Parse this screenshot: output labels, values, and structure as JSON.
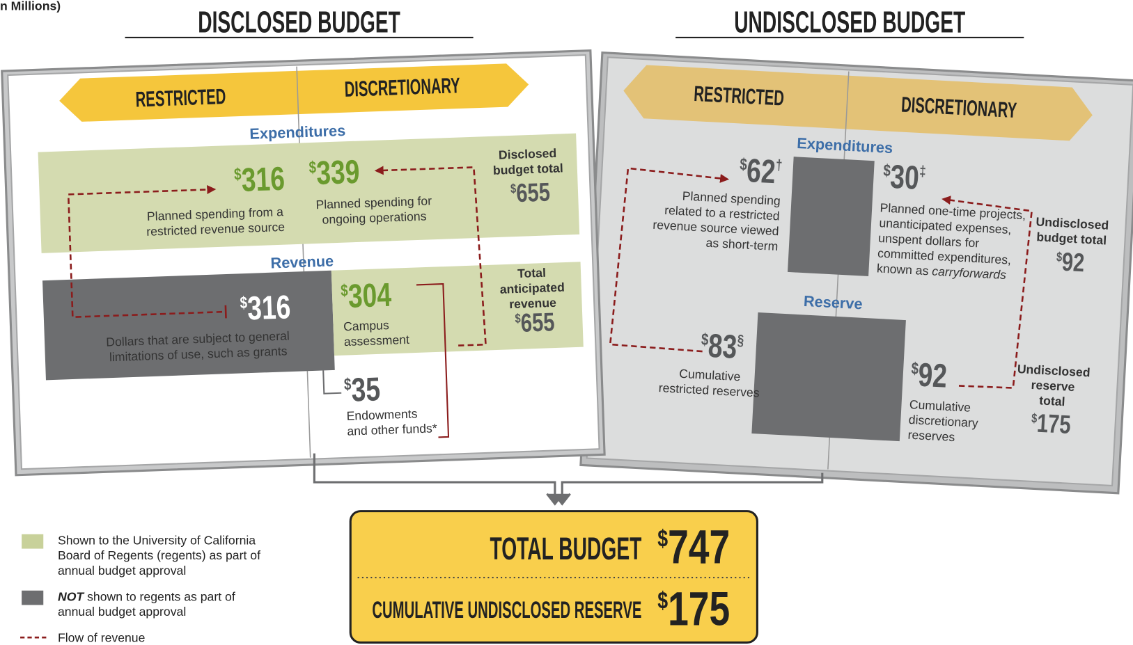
{
  "units": "n Millions)",
  "disclosed": {
    "title": "DISCLOSED BUDGET",
    "restricted_label": "RESTRICTED",
    "discretionary_label": "DISCRETIONARY",
    "expenditures_label": "Expenditures",
    "restricted_spending": {
      "amount": {
        "symbol": "$",
        "value": 316
      },
      "description": [
        "Planned spending from a",
        "restricted revenue source"
      ]
    },
    "discretionary_spending": {
      "amount": {
        "symbol": "$",
        "value": 339
      },
      "description": [
        "Planned spending for",
        "ongoing operations"
      ]
    },
    "budget_total": {
      "label": [
        "Disclosed",
        "budget total"
      ],
      "amount": {
        "symbol": "$",
        "value": 655
      }
    },
    "revenue_label": "Revenue",
    "restricted_revenue": {
      "amount": {
        "symbol": "$",
        "value": 316
      },
      "description": [
        "Dollars that are subject to general",
        "limitations of use, such as grants"
      ]
    },
    "campus_assessment": {
      "amount": {
        "symbol": "$",
        "value": 304
      },
      "description": [
        "Campus",
        "assessment"
      ]
    },
    "revenue_total": {
      "label": [
        "Total",
        "anticipated",
        "revenue"
      ],
      "amount": {
        "symbol": "$",
        "value": 655
      }
    },
    "endowments": {
      "amount": {
        "symbol": "$",
        "value": 35
      },
      "description": [
        "Endowments",
        "and other funds*"
      ]
    }
  },
  "undisclosed": {
    "title": "UNDISCLOSED BUDGET",
    "restricted_label": "RESTRICTED",
    "discretionary_label": "DISCRETIONARY",
    "expenditures_label": "Expenditures",
    "restricted_spending": {
      "amount": {
        "symbol": "$",
        "value": 62,
        "note": "†"
      },
      "description": [
        "Planned spending",
        "related to a restricted",
        "revenue source viewed",
        "as short-term"
      ]
    },
    "discretionary_spending": {
      "amount": {
        "symbol": "$",
        "value": 30,
        "note": "‡"
      },
      "description": [
        "Planned one-time projects,",
        "unanticipated expenses,",
        "unspent dollars for",
        "committed expenditures,",
        "known as "
      ],
      "emphasis": "carryforwards"
    },
    "budget_total": {
      "label": [
        "Undisclosed",
        "budget total"
      ],
      "amount": {
        "symbol": "$",
        "value": 92
      }
    },
    "reserve_label": "Reserve",
    "restricted_reserve": {
      "amount": {
        "symbol": "$",
        "value": 83,
        "note": "§"
      },
      "description": [
        "Cumulative",
        "restricted reserves"
      ]
    },
    "discretionary_reserve": {
      "amount": {
        "symbol": "$",
        "value": 92
      },
      "description": [
        "Cumulative",
        "discretionary",
        "reserves"
      ]
    },
    "reserve_total": {
      "label": [
        "Undisclosed",
        "reserve",
        "total"
      ],
      "amount": {
        "symbol": "$",
        "value": 175
      }
    }
  },
  "summary": {
    "total_budget": {
      "label": "TOTAL BUDGET",
      "amount": {
        "symbol": "$",
        "value": 747
      }
    },
    "undisclosed_reserve": {
      "label": "CUMULATIVE UNDISCLOSED RESERVE",
      "amount": {
        "symbol": "$",
        "value": 175
      }
    }
  },
  "legend": [
    {
      "text": [
        "Shown to the University of California",
        "Board of Regents (regents) as part of",
        "annual budget approval"
      ]
    },
    {
      "emphasis": "NOT",
      "text": [
        " shown to regents as part of",
        "annual budget approval"
      ]
    },
    {
      "text": [
        "Flow of revenue"
      ]
    }
  ]
}
